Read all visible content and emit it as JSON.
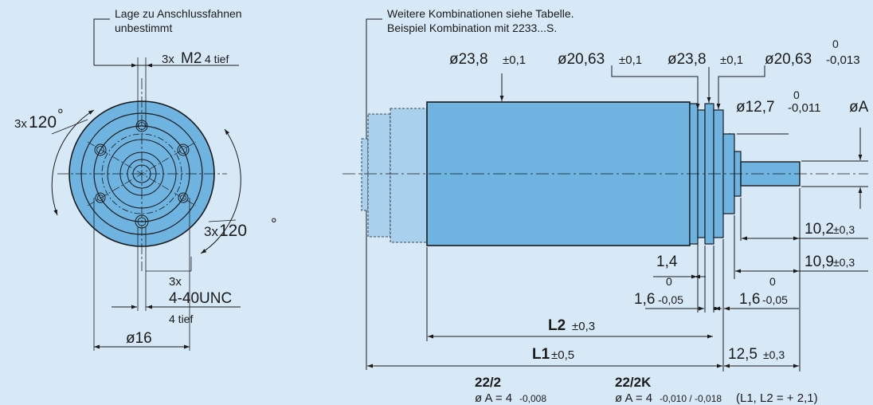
{
  "front": {
    "note_line1": "Lage zu Anschlussfahnen",
    "note_line2": "unbestimmt",
    "thread_top_prefix": "3x",
    "thread_top": "M2",
    "thread_top_depth": "4 tief",
    "angle_left_prefix": "3x",
    "angle_left": "120",
    "angle_right_prefix": "3x",
    "angle_right": "120",
    "thread_bottom_prefix": "3x",
    "thread_bottom": "4-40UNC",
    "thread_bottom_depth": "4 tief",
    "diameter_bottom": "ø16",
    "degree_symbol": "°"
  },
  "side": {
    "note_line1": "Weitere Kombinationen siehe Tabelle.",
    "note_line2": "Beispiel Kombination mit 2233...S.",
    "d_body": "ø23,8",
    "d_body_tol": "±0,1",
    "d_flange1": "ø20,63",
    "d_flange1_tol": "±0,1",
    "d_flange2": "ø23,8",
    "d_flange2_tol": "±0,1",
    "d_flange3": "ø20,63",
    "d_flange3_tol_upper": "0",
    "d_flange3_tol_lower": "-0,013",
    "d_pilot": "ø12,7",
    "d_pilot_tol_upper": "0",
    "d_pilot_tol_lower": "-0,011",
    "d_shaft": "øA",
    "shaft_len1": "10,2",
    "shaft_len1_tol": "±0,3",
    "shaft_len2": "10,9",
    "shaft_len2_tol": "±0,3",
    "dim_14": "1,4",
    "dim_16a": "1,6",
    "dim_16a_upper": "0",
    "dim_16a_lower": "-0,05",
    "dim_16b": "1,6",
    "dim_16b_upper": "0",
    "dim_16b_lower": "-0,05",
    "L2": "L2",
    "L2_tol": "±0,3",
    "L1": "L1",
    "L1_tol": "±0,5",
    "dim_125": "12,5",
    "dim_125_tol": "±0,3"
  },
  "table": {
    "col1_head": "22/2",
    "col1_prefix": "ø A = 4",
    "col1_tol": "-0,008",
    "col2_head": "22/2K",
    "col2_prefix": "ø A = 4",
    "col2_tol": "-0,010 / -0,018",
    "col2_suffix": "(L1, L2 = + 2,1)"
  },
  "colors": {
    "background": "#d7e9f6",
    "part_fill": "#6fb3e0",
    "part_light": "#a9d0ec",
    "line": "#1a1a1a"
  }
}
